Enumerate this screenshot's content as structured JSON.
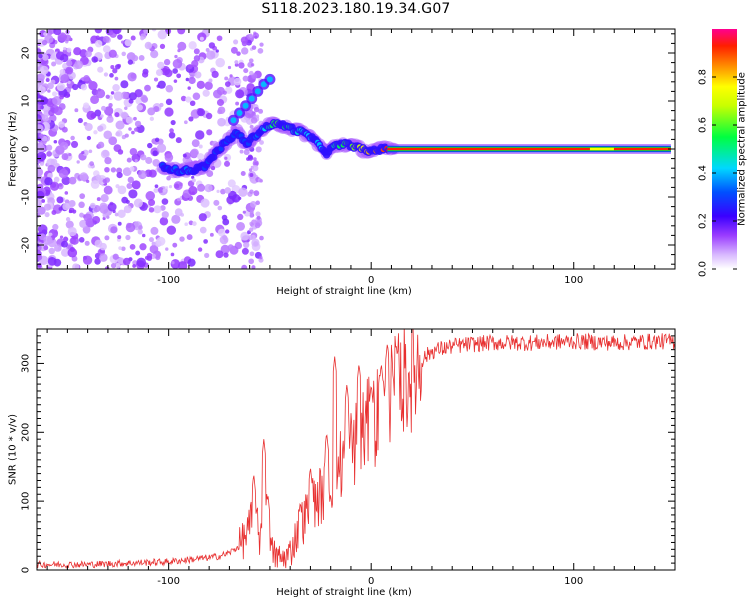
{
  "figure": {
    "title": "S118.2023.180.19.34.G07"
  },
  "chart_data": [
    {
      "type": "heatmap",
      "title": "S118.2023.180.19.34.G07",
      "xlabel": "Height of straight line (km)",
      "ylabel": "Frequency (Hz)",
      "xlim": [
        -165,
        150
      ],
      "ylim": [
        -25,
        25
      ],
      "x_ticks": [
        -100,
        0,
        100
      ],
      "y_ticks": [
        -20,
        -10,
        0,
        10,
        20
      ],
      "colorbar": {
        "label": "Normalized spectral amplitude",
        "range": [
          0.0,
          1.0
        ],
        "ticks": [
          0.0,
          0.2,
          0.4,
          0.6,
          0.8
        ]
      },
      "signal_track": {
        "x": [
          -103,
          -95,
          -88,
          -82,
          -78,
          -74,
          -70,
          -66,
          -62,
          -58,
          -54,
          -50,
          -46,
          -42,
          -38,
          -34,
          -30,
          -26,
          -22,
          -18,
          -14,
          -10,
          -6,
          -2,
          2,
          6,
          10,
          40,
          80,
          120,
          148
        ],
        "frequency_hz": [
          -3.5,
          -4.6,
          -4.4,
          -3.5,
          -1.5,
          0.5,
          2.0,
          3.5,
          1.0,
          2.5,
          4.0,
          5.0,
          5.2,
          4.8,
          4.0,
          3.5,
          2.5,
          1.0,
          -0.8,
          0.6,
          1.0,
          0.8,
          0.2,
          -0.5,
          -0.2,
          0.0,
          0.0,
          0.0,
          0.0,
          0.0,
          0.0
        ],
        "normalized_amplitude": [
          0.3,
          0.35,
          0.35,
          0.3,
          0.3,
          0.3,
          0.3,
          0.3,
          0.3,
          0.3,
          0.4,
          0.5,
          0.6,
          0.55,
          0.45,
          0.45,
          0.4,
          0.4,
          0.45,
          0.5,
          0.55,
          0.6,
          0.7,
          0.8,
          0.85,
          0.9,
          0.95,
          1.0,
          1.0,
          0.95,
          1.0
        ]
      },
      "upper_branch": {
        "x": [
          -68,
          -65,
          -62,
          -59,
          -56,
          -53,
          -50
        ],
        "frequency_hz": [
          6,
          7.5,
          9,
          10.5,
          12,
          13.5,
          14.5
        ]
      },
      "grid": false,
      "colormap": [
        "#f0f0ff",
        "#c08cff",
        "#7800ff",
        "#0000ff",
        "#00e6ff",
        "#00ff00",
        "#ffff00",
        "#ff7800",
        "#ff0000",
        "#ff0096"
      ]
    },
    {
      "type": "line",
      "xlabel": "Height of straight line (km)",
      "ylabel": "SNR (10 * v/v)",
      "xlim": [
        -165,
        150
      ],
      "ylim": [
        0,
        350
      ],
      "x_ticks": [
        -100,
        0,
        100
      ],
      "y_ticks": [
        0,
        100,
        200,
        300
      ],
      "grid": false,
      "series": [
        {
          "color": "#e83030",
          "x": [
            -165,
            -140,
            -120,
            -100,
            -90,
            -80,
            -75,
            -70,
            -65,
            -60,
            -58,
            -55,
            -53,
            -50,
            -47,
            -44,
            -40,
            -36,
            -32,
            -28,
            -24,
            -20,
            -16,
            -12,
            -8,
            -4,
            0,
            4,
            8,
            12,
            16,
            20,
            25,
            30,
            40,
            50,
            60,
            80,
            100,
            120,
            140,
            150
          ],
          "values": [
            8,
            8,
            10,
            12,
            15,
            18,
            20,
            25,
            35,
            60,
            80,
            45,
            120,
            30,
            20,
            15,
            25,
            60,
            80,
            100,
            110,
            130,
            150,
            170,
            185,
            200,
            215,
            230,
            245,
            260,
            275,
            290,
            305,
            318,
            325,
            328,
            330,
            330,
            332,
            330,
            332,
            332
          ]
        }
      ],
      "spikes": [
        {
          "x": -58,
          "value": 140
        },
        {
          "x": -53,
          "value": 190
        },
        {
          "x": -51,
          "value": 110
        },
        {
          "x": -35,
          "value": 100
        },
        {
          "x": -30,
          "value": 150
        },
        {
          "x": -22,
          "value": 200
        },
        {
          "x": -18,
          "value": 310
        },
        {
          "x": -12,
          "value": 270
        },
        {
          "x": -6,
          "value": 300
        },
        {
          "x": 0,
          "value": 270
        },
        {
          "x": 5,
          "value": 300
        },
        {
          "x": 8,
          "value": 330
        },
        {
          "x": 13,
          "value": 320
        }
      ]
    }
  ]
}
